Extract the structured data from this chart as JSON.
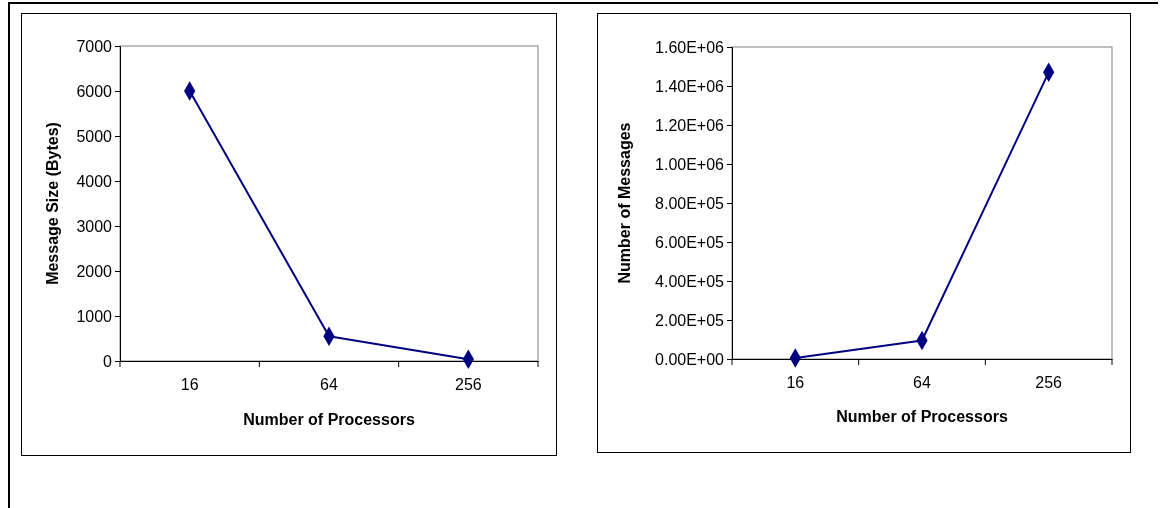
{
  "chart_data": [
    {
      "type": "line",
      "categories": [
        "16",
        "64",
        "256"
      ],
      "xlabel": "Number of Processors",
      "ylabel": "Message Size (Bytes)",
      "ylim": [
        0,
        7000
      ],
      "yticks": [
        0,
        1000,
        2000,
        3000,
        4000,
        5000,
        6000,
        7000
      ],
      "marker": "diamond",
      "series": [
        {
          "color": "#000080",
          "values": [
            6000,
            550,
            40
          ]
        }
      ]
    },
    {
      "type": "line",
      "categories": [
        "16",
        "64",
        "256"
      ],
      "xlabel": "Number of Processors",
      "ylabel": "Number of Messages",
      "ylim": [
        0,
        1600000
      ],
      "yticks": [
        {
          "value": 0,
          "label": "0.00E+00"
        },
        {
          "value": 200000,
          "label": "2.00E+05"
        },
        {
          "value": 400000,
          "label": "4.00E+05"
        },
        {
          "value": 600000,
          "label": "6.00E+05"
        },
        {
          "value": 800000,
          "label": "8.00E+05"
        },
        {
          "value": 1000000,
          "label": "1.00E+06"
        },
        {
          "value": 1200000,
          "label": "1.20E+06"
        },
        {
          "value": 1400000,
          "label": "1.40E+06"
        },
        {
          "value": 1600000,
          "label": "1.60E+06"
        }
      ],
      "marker": "diamond",
      "series": [
        {
          "color": "#000080",
          "values": [
            5000,
            95000,
            1470000
          ]
        }
      ]
    }
  ]
}
